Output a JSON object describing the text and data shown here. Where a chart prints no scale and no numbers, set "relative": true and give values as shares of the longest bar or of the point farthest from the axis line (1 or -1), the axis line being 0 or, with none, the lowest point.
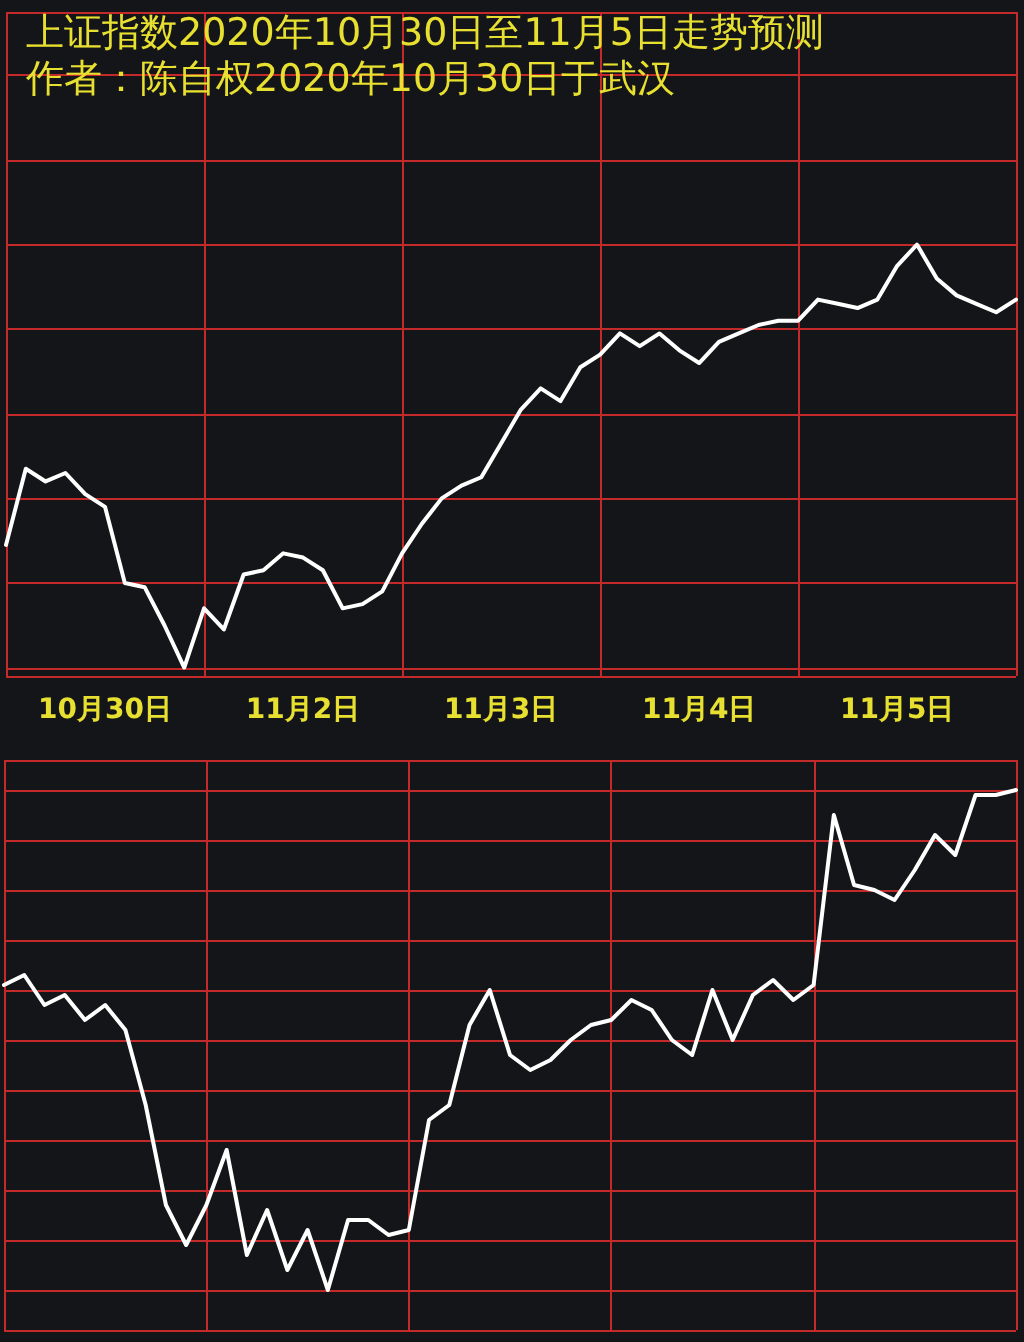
{
  "chart_data": [
    {
      "type": "line",
      "title": "上证指数2020年10月30日至11月5日走势预测",
      "subtitle": "作者：陈自权2020年10月30日于武汉",
      "relative": true,
      "grid": true,
      "marker": "none",
      "line_style": "solid",
      "categories": [
        null,
        null,
        null,
        null,
        null,
        "10月30日",
        null,
        null,
        null,
        null,
        null,
        null,
        null,
        null,
        null,
        "11月2日",
        null,
        null,
        null,
        null,
        null,
        null,
        null,
        null,
        null,
        "11月3日",
        null,
        null,
        null,
        null,
        null,
        null,
        null,
        null,
        null,
        "11月4日",
        null,
        null,
        null,
        null,
        null,
        null,
        null,
        null,
        null,
        "11月5日",
        null,
        null,
        null,
        null,
        null,
        null
      ],
      "series": [
        {
          "color": "#ffffff",
          "values": [
            0.29,
            0.47,
            0.44,
            0.46,
            0.41,
            0.38,
            0.2,
            0.19,
            0.1,
            0,
            0.14,
            0.09,
            0.22,
            0.23,
            0.27,
            0.26,
            0.23,
            0.14,
            0.15,
            0.18,
            0.27,
            0.34,
            0.4,
            0.43,
            0.45,
            0.53,
            0.61,
            0.66,
            0.63,
            0.71,
            0.74,
            0.79,
            0.76,
            0.79,
            0.75,
            0.72,
            0.77,
            0.79,
            0.81,
            0.82,
            0.82,
            0.87,
            0.86,
            0.85,
            0.87,
            0.95,
            1,
            0.92,
            0.88,
            0.86,
            0.84,
            0.87
          ]
        }
      ]
    },
    {
      "type": "line",
      "relative": true,
      "grid": true,
      "marker": "none",
      "line_style": "solid",
      "categories": [
        null,
        null,
        null,
        null,
        null,
        null,
        null,
        null,
        null,
        null,
        null,
        null,
        null,
        null,
        null,
        null,
        null,
        null,
        null,
        null,
        null,
        null,
        null,
        null,
        null,
        null,
        null,
        null,
        null,
        null,
        null,
        null,
        null,
        null,
        null,
        null,
        null,
        null,
        null,
        null,
        null,
        null,
        null,
        null,
        null,
        null,
        null,
        null,
        null,
        null,
        null
      ],
      "series": [
        {
          "color": "#ffffff",
          "values": [
            0.61,
            0.63,
            0.57,
            0.59,
            0.54,
            0.57,
            0.52,
            0.37,
            0.17,
            0.09,
            0.17,
            0.28,
            0.07,
            0.16,
            0.04,
            0.12,
            0,
            0.14,
            0.14,
            0.11,
            0.12,
            0.34,
            0.37,
            0.53,
            0.6,
            0.47,
            0.44,
            0.46,
            0.5,
            0.53,
            0.54,
            0.58,
            0.56,
            0.5,
            0.47,
            0.6,
            0.5,
            0.59,
            0.62,
            0.58,
            0.61,
            0.95,
            0.81,
            0.8,
            0.78,
            0.84,
            0.91,
            0.87,
            0.99,
            0.99,
            1
          ]
        }
      ]
    }
  ]
}
